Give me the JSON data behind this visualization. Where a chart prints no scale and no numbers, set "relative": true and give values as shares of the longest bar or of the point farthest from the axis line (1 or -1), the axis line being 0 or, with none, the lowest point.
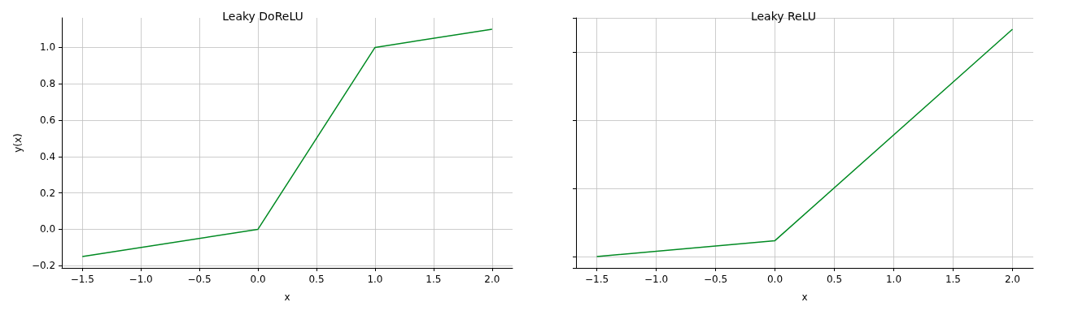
{
  "chart_data": [
    {
      "type": "line",
      "title": "Leaky DoReLU",
      "xlabel": "x",
      "ylabel": "y(x)",
      "grid": true,
      "line_style": "solid",
      "marker": "none",
      "xlim": [
        -1.675,
        2.175
      ],
      "ylim": [
        -0.2125,
        1.1625
      ],
      "xticks": [
        {
          "value": -1.5,
          "label": "−1.5"
        },
        {
          "value": -1,
          "label": "−1.0"
        },
        {
          "value": -0.5,
          "label": "−0.5"
        },
        {
          "value": 0,
          "label": "0.0"
        },
        {
          "value": 0.5,
          "label": "0.5"
        },
        {
          "value": 1,
          "label": "1.0"
        },
        {
          "value": 1.5,
          "label": "1.5"
        },
        {
          "value": 2,
          "label": "2.0"
        }
      ],
      "yticks": [
        {
          "value": -0.2,
          "label": "−0.2"
        },
        {
          "value": 0,
          "label": "0.0"
        },
        {
          "value": 0.2,
          "label": "0.2"
        },
        {
          "value": 0.4,
          "label": "0.4"
        },
        {
          "value": 0.6,
          "label": "0.6"
        },
        {
          "value": 0.8,
          "label": "0.8"
        },
        {
          "value": 1,
          "label": "1.0"
        }
      ],
      "series": [
        {
          "color": "#008a22",
          "x": [
            -1.5,
            0,
            1,
            2
          ],
          "values": [
            -0.15,
            0,
            1,
            1.1
          ]
        }
      ]
    },
    {
      "type": "line",
      "title": "Leaky ReLU",
      "xlabel": "x",
      "grid": true,
      "line_style": "solid",
      "marker": "none",
      "tick_labels": "x",
      "relative": true,
      "xlim": [
        -1.675,
        2.175
      ],
      "xticks": [
        {
          "value": -1.5,
          "label": "−1.5"
        },
        {
          "value": -1,
          "label": "−1.0"
        },
        {
          "value": -0.5,
          "label": "−0.5"
        },
        {
          "value": 0,
          "label": "0.0"
        },
        {
          "value": 0.5,
          "label": "0.5"
        },
        {
          "value": 1,
          "label": "1.0"
        },
        {
          "value": 1.5,
          "label": "1.5"
        },
        {
          "value": 2,
          "label": "2.0"
        }
      ],
      "series": [
        {
          "color": "#008a22",
          "x": [
            -1.5,
            0,
            2
          ],
          "values": [
            0,
            0.07,
            1
          ]
        }
      ]
    }
  ]
}
